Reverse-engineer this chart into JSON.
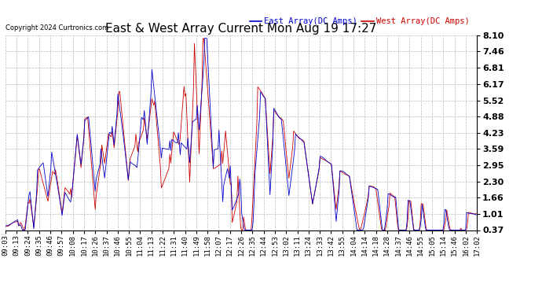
{
  "title": "East & West Array Current Mon Aug 19 17:27",
  "legend_east": "East Array(DC Amps)",
  "legend_west": "West Array(DC Amps)",
  "copyright": "Copyright 2024 Curtronics.com",
  "east_color": "#0000cc",
  "west_color": "#cc0000",
  "bg_color": "#ffffff",
  "grid_color": "#bbbbbb",
  "ylim": [
    0.37,
    8.1
  ],
  "yticks": [
    0.37,
    1.01,
    1.66,
    2.3,
    2.95,
    3.59,
    4.23,
    4.88,
    5.52,
    6.17,
    6.81,
    7.46,
    8.1
  ],
  "xtick_labels": [
    "09:03",
    "09:13",
    "09:24",
    "09:35",
    "09:46",
    "09:57",
    "10:08",
    "10:17",
    "10:26",
    "10:37",
    "10:46",
    "10:55",
    "11:04",
    "11:13",
    "11:22",
    "11:31",
    "11:40",
    "11:49",
    "11:58",
    "12:07",
    "12:17",
    "12:26",
    "12:35",
    "12:44",
    "12:53",
    "13:02",
    "13:11",
    "13:24",
    "13:33",
    "13:42",
    "13:55",
    "14:04",
    "14:14",
    "14:18",
    "14:28",
    "14:37",
    "14:46",
    "14:55",
    "15:05",
    "15:14",
    "15:46",
    "16:02",
    "17:02"
  ],
  "title_fontsize": 11,
  "tick_fontsize": 6.5,
  "legend_fontsize": 7.5,
  "copyright_fontsize": 6
}
